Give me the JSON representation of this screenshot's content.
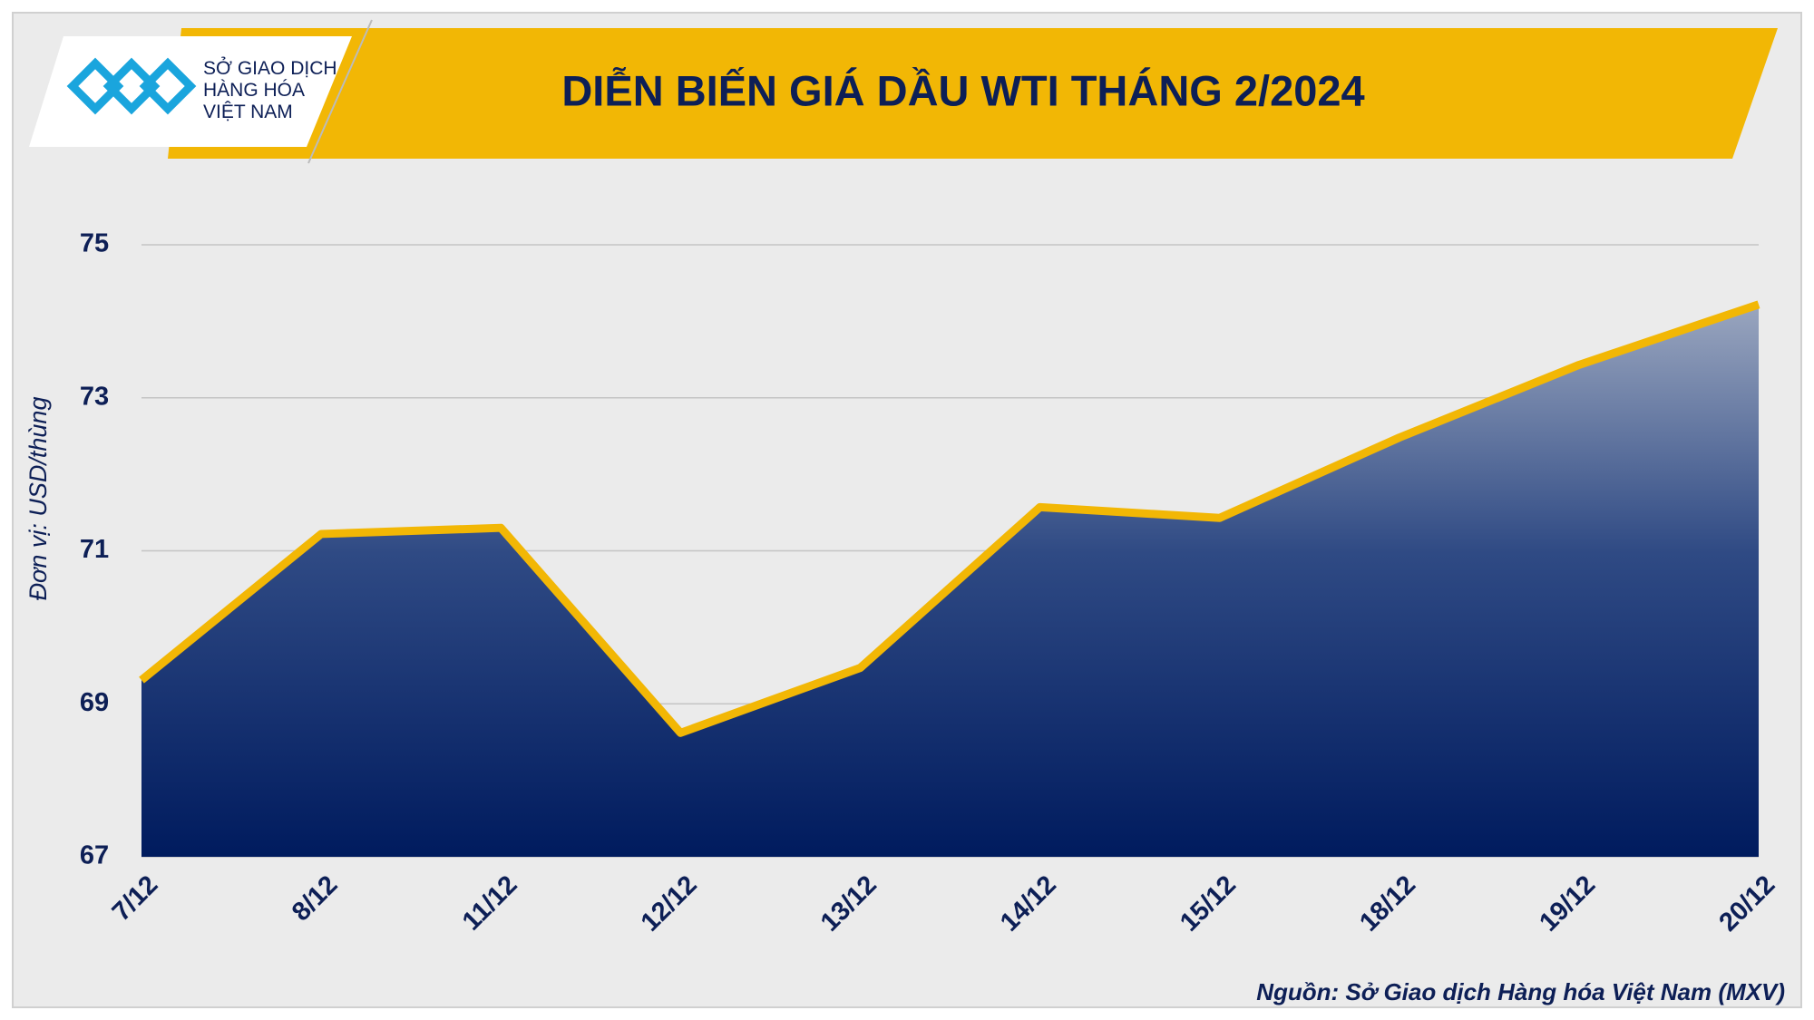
{
  "logo": {
    "lines": [
      "SỞ GIAO DỊCH",
      "HÀNG HÓA",
      "VIỆT NAM"
    ]
  },
  "chart_data": {
    "type": "area",
    "title": "DIỄN BIẾN GIÁ DẦU WTI THÁNG 2/2024",
    "ylabel": "Đơn vị: USD/thùng",
    "source": "Nguồn: Sở Giao dịch Hàng hóa Việt Nam (MXV)",
    "categories": [
      "7/12",
      "8/12",
      "11/12",
      "12/12",
      "13/12",
      "14/12",
      "15/12",
      "18/12",
      "19/12",
      "20/12"
    ],
    "series": [
      {
        "name": "WTI",
        "color": "#f2b705",
        "values": [
          69.31,
          71.22,
          71.3,
          68.62,
          69.47,
          71.57,
          71.43,
          72.48,
          73.43,
          74.22
        ]
      }
    ],
    "ylim": [
      67,
      75
    ],
    "yticks": [
      67,
      69,
      71,
      73,
      75
    ],
    "grid": true
  }
}
